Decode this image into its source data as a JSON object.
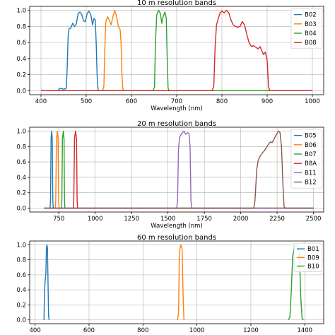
{
  "chart_data": [
    {
      "type": "line",
      "title": "10 m resolution bands",
      "xlabel": "Wavelength (nm)",
      "ylabel": "",
      "xlim": [
        375,
        1025
      ],
      "ylim": [
        -0.05,
        1.05
      ],
      "xticks": [
        400,
        500,
        600,
        700,
        800,
        900,
        1000
      ],
      "yticks": [
        0.0,
        0.2,
        0.4,
        0.6,
        0.8,
        1.0
      ],
      "grid": true,
      "legend": "top-right",
      "series": [
        {
          "name": "B02",
          "color": "#1f77b4",
          "points": [
            [
              400,
              0
            ],
            [
              438,
              0
            ],
            [
              440,
              0.02
            ],
            [
              444,
              0.03
            ],
            [
              448,
              0.02
            ],
            [
              452,
              0.02
            ],
            [
              456,
              0.03
            ],
            [
              458,
              0.3
            ],
            [
              460,
              0.68
            ],
            [
              462,
              0.77
            ],
            [
              466,
              0.78
            ],
            [
              470,
              0.84
            ],
            [
              474,
              0.8
            ],
            [
              478,
              0.83
            ],
            [
              482,
              0.96
            ],
            [
              486,
              0.98
            ],
            [
              490,
              0.95
            ],
            [
              494,
              0.87
            ],
            [
              498,
              0.86
            ],
            [
              502,
              0.96
            ],
            [
              506,
              0.99
            ],
            [
              510,
              0.95
            ],
            [
              514,
              0.82
            ],
            [
              517,
              0.9
            ],
            [
              520,
              0.88
            ],
            [
              522,
              0.6
            ],
            [
              524,
              0.2
            ],
            [
              526,
              0.02
            ],
            [
              528,
              0
            ],
            [
              1000,
              0
            ]
          ]
        },
        {
          "name": "B03",
          "color": "#ff7f0e",
          "points": [
            [
              400,
              0
            ],
            [
              536,
              0
            ],
            [
              539,
              0.05
            ],
            [
              541,
              0.5
            ],
            [
              543,
              0.85
            ],
            [
              547,
              0.92
            ],
            [
              551,
              0.88
            ],
            [
              555,
              0.82
            ],
            [
              559,
              0.92
            ],
            [
              563,
              1.0
            ],
            [
              567,
              0.93
            ],
            [
              571,
              0.8
            ],
            [
              575,
              0.76
            ],
            [
              577,
              0.6
            ],
            [
              579,
              0.2
            ],
            [
              581,
              0.02
            ],
            [
              583,
              0
            ],
            [
              1000,
              0
            ]
          ]
        },
        {
          "name": "B04",
          "color": "#2ca02c",
          "points": [
            [
              400,
              0
            ],
            [
              648,
              0
            ],
            [
              651,
              0.05
            ],
            [
              653,
              0.6
            ],
            [
              656,
              0.95
            ],
            [
              660,
              1.0
            ],
            [
              664,
              0.96
            ],
            [
              667,
              0.84
            ],
            [
              670,
              0.92
            ],
            [
              674,
              0.98
            ],
            [
              677,
              0.9
            ],
            [
              679,
              0.4
            ],
            [
              681,
              0.03
            ],
            [
              683,
              0
            ],
            [
              1000,
              0
            ]
          ]
        },
        {
          "name": "B08",
          "color": "#d62728",
          "points": [
            [
              400,
              0
            ],
            [
              778,
              0
            ],
            [
              782,
              0.05
            ],
            [
              785,
              0.55
            ],
            [
              788,
              0.82
            ],
            [
              792,
              0.9
            ],
            [
              796,
              0.97
            ],
            [
              800,
              0.99
            ],
            [
              805,
              0.97
            ],
            [
              810,
              1.0
            ],
            [
              815,
              0.97
            ],
            [
              820,
              0.88
            ],
            [
              825,
              0.82
            ],
            [
              830,
              0.8
            ],
            [
              835,
              0.79
            ],
            [
              840,
              0.8
            ],
            [
              845,
              0.86
            ],
            [
              850,
              0.82
            ],
            [
              855,
              0.7
            ],
            [
              860,
              0.6
            ],
            [
              865,
              0.55
            ],
            [
              870,
              0.56
            ],
            [
              875,
              0.54
            ],
            [
              880,
              0.52
            ],
            [
              884,
              0.55
            ],
            [
              888,
              0.5
            ],
            [
              892,
              0.45
            ],
            [
              896,
              0.48
            ],
            [
              900,
              0.38
            ],
            [
              903,
              0.05
            ],
            [
              906,
              0
            ],
            [
              1000,
              0
            ]
          ]
        }
      ]
    },
    {
      "type": "line",
      "title": "20 m resolution bands",
      "xlabel": "Wavelength (nm)",
      "ylabel": "",
      "xlim": [
        550,
        2570
      ],
      "ylim": [
        -0.05,
        1.05
      ],
      "xticks": [
        750,
        1000,
        1250,
        1500,
        1750,
        2000,
        2250,
        2500
      ],
      "yticks": [
        0.0,
        0.2,
        0.4,
        0.6,
        0.8,
        1.0
      ],
      "grid": true,
      "legend": "top-right",
      "series": [
        {
          "name": "B05",
          "color": "#1f77b4",
          "points": [
            [
              650,
              0
            ],
            [
              690,
              0
            ],
            [
              693,
              0.1
            ],
            [
              697,
              0.9
            ],
            [
              701,
              1.0
            ],
            [
              705,
              0.9
            ],
            [
              709,
              0.1
            ],
            [
              712,
              0
            ],
            [
              2500,
              0
            ]
          ]
        },
        {
          "name": "B06",
          "color": "#ff7f0e",
          "points": [
            [
              650,
              0
            ],
            [
              726,
              0
            ],
            [
              729,
              0.1
            ],
            [
              734,
              0.9
            ],
            [
              740,
              1.0
            ],
            [
              745,
              0.9
            ],
            [
              749,
              0.1
            ],
            [
              752,
              0
            ],
            [
              2500,
              0
            ]
          ]
        },
        {
          "name": "B07",
          "color": "#2ca02c",
          "points": [
            [
              650,
              0
            ],
            [
              768,
              0
            ],
            [
              771,
              0.1
            ],
            [
              775,
              0.9
            ],
            [
              781,
              1.0
            ],
            [
              786,
              0.9
            ],
            [
              789,
              0.1
            ],
            [
              792,
              0
            ],
            [
              2500,
              0
            ]
          ]
        },
        {
          "name": "B8A",
          "color": "#d62728",
          "points": [
            [
              650,
              0
            ],
            [
              850,
              0
            ],
            [
              853,
              0.1
            ],
            [
              858,
              0.9
            ],
            [
              865,
              1.0
            ],
            [
              872,
              0.9
            ],
            [
              876,
              0.1
            ],
            [
              879,
              0
            ],
            [
              2500,
              0
            ]
          ]
        },
        {
          "name": "B11",
          "color": "#9467bd",
          "points": [
            [
              650,
              0
            ],
            [
              1560,
              0
            ],
            [
              1566,
              0.1
            ],
            [
              1572,
              0.75
            ],
            [
              1580,
              0.92
            ],
            [
              1595,
              0.97
            ],
            [
              1610,
              1.0
            ],
            [
              1622,
              0.96
            ],
            [
              1635,
              0.98
            ],
            [
              1645,
              0.97
            ],
            [
              1652,
              0.8
            ],
            [
              1658,
              0.1
            ],
            [
              1664,
              0
            ],
            [
              2500,
              0
            ]
          ]
        },
        {
          "name": "B12",
          "color": "#8c564b",
          "points": [
            [
              650,
              0
            ],
            [
              2090,
              0
            ],
            [
              2098,
              0.1
            ],
            [
              2110,
              0.5
            ],
            [
              2120,
              0.62
            ],
            [
              2135,
              0.68
            ],
            [
              2150,
              0.72
            ],
            [
              2165,
              0.75
            ],
            [
              2180,
              0.8
            ],
            [
              2195,
              0.84
            ],
            [
              2205,
              0.86
            ],
            [
              2215,
              0.85
            ],
            [
              2225,
              0.88
            ],
            [
              2235,
              0.92
            ],
            [
              2250,
              0.97
            ],
            [
              2260,
              1.0
            ],
            [
              2270,
              0.98
            ],
            [
              2280,
              0.8
            ],
            [
              2290,
              0.3
            ],
            [
              2298,
              0.02
            ],
            [
              2305,
              0
            ],
            [
              2500,
              0
            ]
          ]
        }
      ]
    },
    {
      "type": "line",
      "title": "60 m resolution bands",
      "xlabel": "",
      "ylabel": "",
      "xlim": [
        380,
        1470
      ],
      "ylim": [
        -0.05,
        1.05
      ],
      "xticks": [
        400,
        600,
        800,
        1000,
        1200,
        1400
      ],
      "yticks": [
        0.0,
        0.2,
        0.4,
        0.6,
        0.8,
        1.0
      ],
      "grid": true,
      "legend": "top-right",
      "series": [
        {
          "name": "B01",
          "color": "#1f77b4",
          "points": [
            [
              433,
              0
            ],
            [
              434,
              0.2
            ],
            [
              436,
              0.45
            ],
            [
              438,
              0.55
            ],
            [
              440,
              0.62
            ],
            [
              442,
              0.95
            ],
            [
              444,
              1.0
            ],
            [
              446,
              0.95
            ],
            [
              448,
              0.5
            ],
            [
              450,
              0.05
            ],
            [
              452,
              0
            ]
          ]
        },
        {
          "name": "B09",
          "color": "#ff7f0e",
          "points": [
            [
              928,
              0
            ],
            [
              932,
              0.1
            ],
            [
              935,
              0.9
            ],
            [
              940,
              1.0
            ],
            [
              945,
              0.95
            ],
            [
              949,
              0.3
            ],
            [
              952,
              0
            ]
          ]
        },
        {
          "name": "B10",
          "color": "#2ca02c",
          "points": [
            [
              1340,
              0
            ],
            [
              1345,
              0.05
            ],
            [
              1350,
              0.4
            ],
            [
              1355,
              0.85
            ],
            [
              1362,
              0.98
            ],
            [
              1372,
              1.0
            ],
            [
              1380,
              0.9
            ],
            [
              1385,
              0.3
            ],
            [
              1390,
              0.02
            ],
            [
              1395,
              0
            ]
          ]
        }
      ]
    }
  ]
}
